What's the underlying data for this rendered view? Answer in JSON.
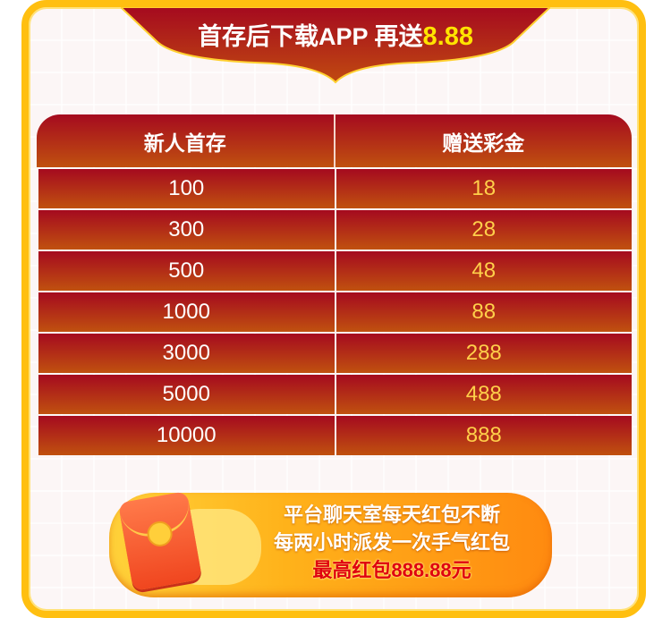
{
  "banner": {
    "title": "首存后下载APP 再送",
    "amount": "8.88"
  },
  "table": {
    "headers": [
      "新人首存",
      "赠送彩金"
    ],
    "rows": [
      {
        "deposit": "100",
        "bonus": "18"
      },
      {
        "deposit": "300",
        "bonus": "28"
      },
      {
        "deposit": "500",
        "bonus": "48"
      },
      {
        "deposit": "1000",
        "bonus": "88"
      },
      {
        "deposit": "3000",
        "bonus": "288"
      },
      {
        "deposit": "5000",
        "bonus": "488"
      },
      {
        "deposit": "10000",
        "bonus": "888"
      }
    ]
  },
  "promo": {
    "line1": "平台聊天室每天红包不断",
    "line2": "每两小时派发一次手气红包",
    "line3": "最高红包888.88元",
    "icon": "red-envelope-icon"
  },
  "colors": {
    "frame": "#ffbf10",
    "table_red": "#a50a1f",
    "table_orange": "#c0510f",
    "bonus_text": "#ffd04a",
    "highlight": "#ffe400"
  }
}
